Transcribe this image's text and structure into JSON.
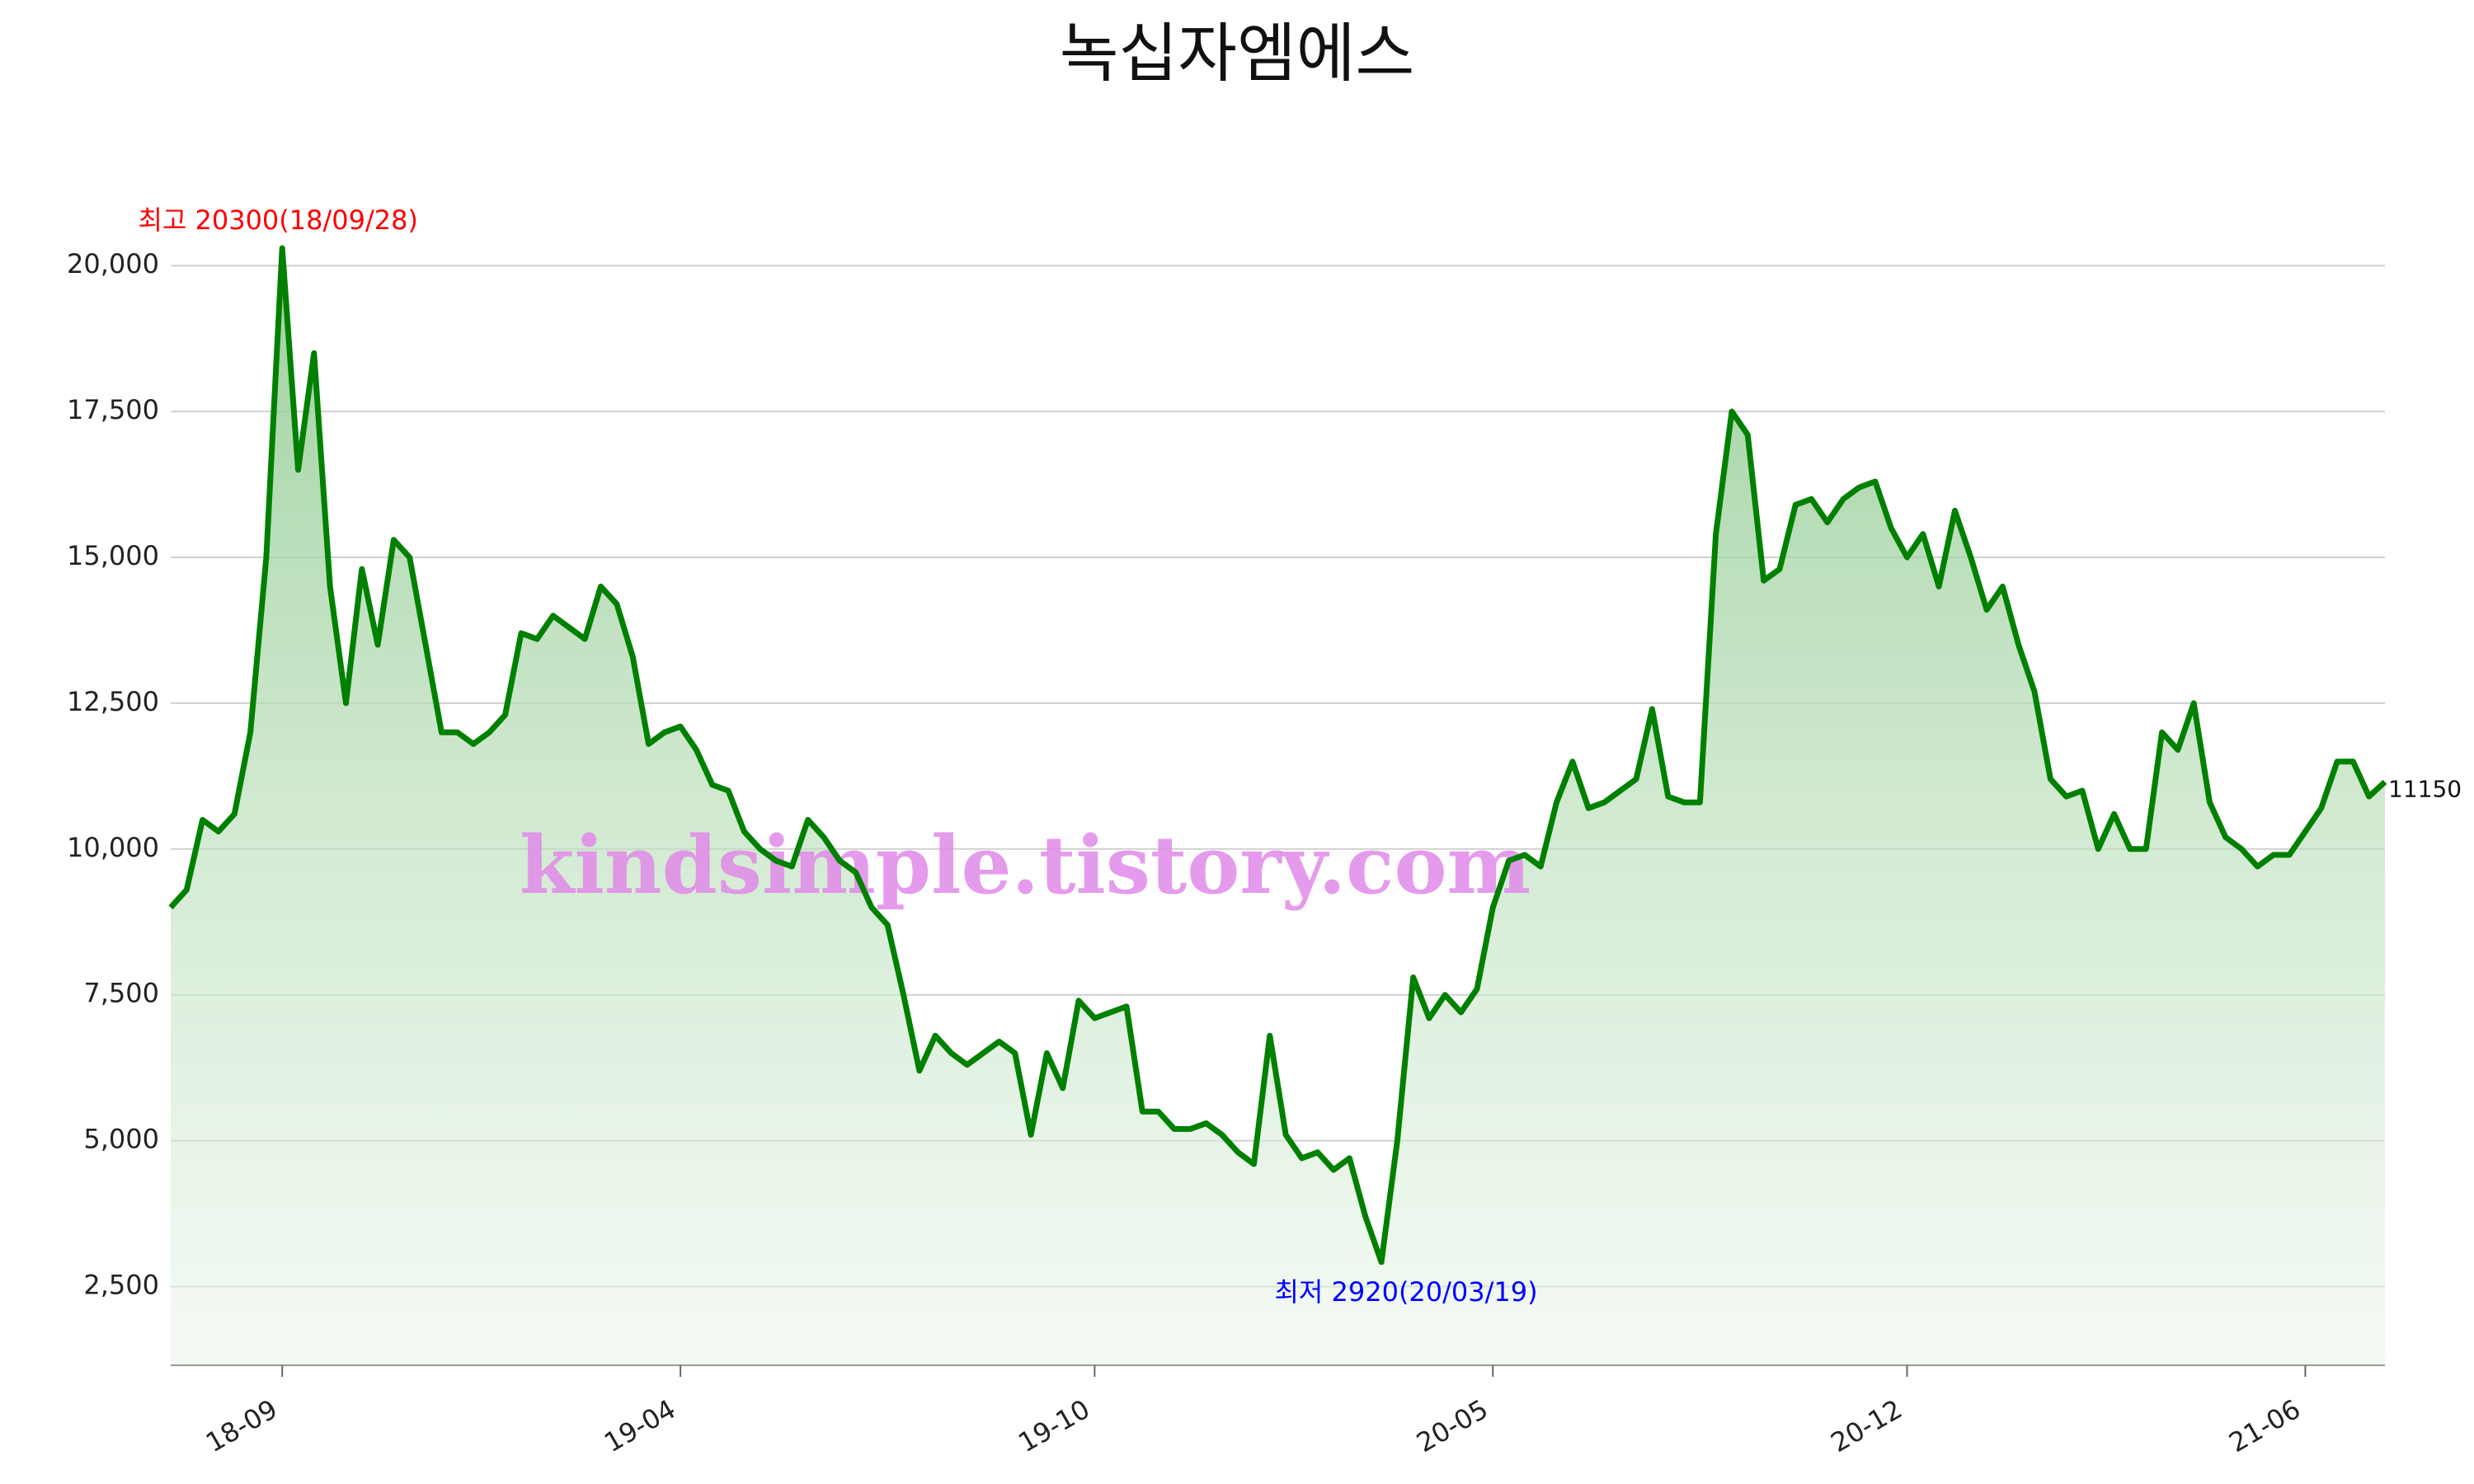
{
  "chart_data": {
    "type": "line",
    "title": "녹십자엠에스",
    "watermark": "kindsimple.tistory.com",
    "color": "#008000",
    "grid": true,
    "annotations": {
      "high": {
        "text": "최고 20300(18/09/28)",
        "color": "#ff0000"
      },
      "low": {
        "text": "최저 2920(20/03/19)",
        "color": "#0000ff"
      }
    },
    "ylim": [
      1150,
      20300
    ],
    "yticks": [
      {
        "value": 2500,
        "label": "2,500"
      },
      {
        "value": 5000,
        "label": "5,000"
      },
      {
        "value": 7500,
        "label": "7,500"
      },
      {
        "value": 10000,
        "label": "10,000"
      },
      {
        "value": 12500,
        "label": "12,500"
      },
      {
        "value": 15000,
        "label": "15,000"
      },
      {
        "value": 17500,
        "label": "17,500"
      },
      {
        "value": 20000,
        "label": "20,000"
      }
    ],
    "categories": [
      null,
      null,
      null,
      null,
      null,
      null,
      null,
      "18-09",
      null,
      null,
      null,
      null,
      null,
      null,
      null,
      null,
      null,
      null,
      null,
      null,
      null,
      null,
      null,
      null,
      null,
      null,
      null,
      null,
      null,
      null,
      null,
      null,
      "19-04",
      null,
      null,
      null,
      null,
      null,
      null,
      null,
      null,
      null,
      null,
      null,
      null,
      null,
      null,
      null,
      null,
      null,
      null,
      null,
      null,
      null,
      null,
      null,
      null,
      null,
      "19-10",
      null,
      null,
      null,
      null,
      null,
      null,
      null,
      null,
      null,
      null,
      null,
      null,
      null,
      null,
      null,
      null,
      null,
      null,
      null,
      null,
      null,
      null,
      null,
      null,
      "20-05",
      null,
      null,
      null,
      null,
      null,
      null,
      null,
      null,
      null,
      null,
      null,
      null,
      null,
      null,
      null,
      null,
      null,
      null,
      null,
      null,
      null,
      null,
      null,
      null,
      null,
      "20-12",
      null,
      null,
      null,
      null,
      null,
      null,
      null,
      null,
      null,
      null,
      null,
      null,
      null,
      null,
      null,
      null,
      null,
      null,
      null,
      null,
      null,
      null,
      null,
      null,
      "21-06",
      null,
      null,
      null,
      null,
      null
    ],
    "values": [
      9000,
      9300,
      10500,
      10300,
      10600,
      12000,
      15000,
      20300,
      16500,
      18500,
      14500,
      12500,
      14800,
      13500,
      15300,
      15000,
      13500,
      12000,
      12000,
      11800,
      12000,
      12300,
      13700,
      13600,
      14000,
      13800,
      13600,
      14500,
      14200,
      13300,
      11800,
      12000,
      12100,
      11700,
      11100,
      11000,
      10300,
      10000,
      9800,
      9700,
      10500,
      10200,
      9800,
      9600,
      9000,
      8700,
      7500,
      6200,
      6800,
      6500,
      6300,
      6500,
      6700,
      6500,
      5100,
      6500,
      5900,
      7400,
      7100,
      7200,
      7300,
      5500,
      5500,
      5200,
      5200,
      5300,
      5100,
      4800,
      4600,
      6800,
      5100,
      4700,
      4800,
      4500,
      4700,
      3700,
      2920,
      5000,
      7800,
      7100,
      7500,
      7200,
      7600,
      9000,
      9800,
      9900,
      9700,
      10800,
      11500,
      10700,
      10800,
      11000,
      11200,
      12400,
      10900,
      10800,
      10800,
      15400,
      17500,
      17100,
      14600,
      14800,
      15900,
      16000,
      15600,
      16000,
      16200,
      16300,
      15500,
      15000,
      15400,
      14500,
      15800,
      15000,
      14100,
      14500,
      13500,
      12700,
      11200,
      10900,
      11000,
      10000,
      10600,
      10000,
      10000,
      12000,
      11700,
      12500,
      10800,
      10200,
      10000,
      9700,
      9900,
      9900,
      10300,
      10700,
      11500,
      11500,
      10900,
      11150
    ]
  }
}
